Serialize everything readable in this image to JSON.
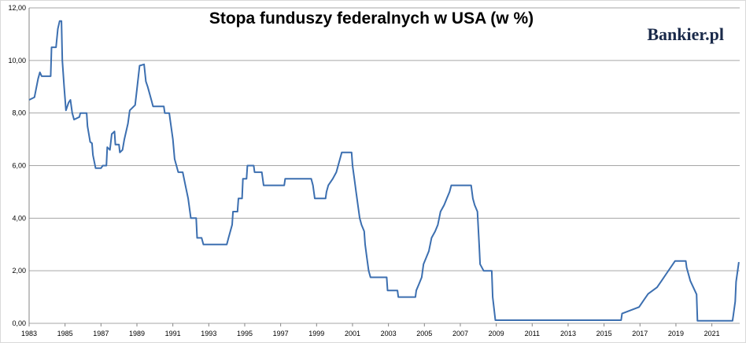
{
  "chart_data": {
    "type": "line",
    "title": "Stopa funduszy federalnych w USA (w %)",
    "brand": "Bankier.pl",
    "x": [
      1983.0,
      1983.3,
      1983.5,
      1983.6,
      1983.7,
      1984.2,
      1984.25,
      1984.5,
      1984.6,
      1984.7,
      1984.8,
      1984.85,
      1984.95,
      1985.05,
      1985.2,
      1985.3,
      1985.4,
      1985.5,
      1985.8,
      1985.85,
      1986.2,
      1986.25,
      1986.4,
      1986.5,
      1986.55,
      1986.7,
      1987.0,
      1987.1,
      1987.3,
      1987.35,
      1987.5,
      1987.6,
      1987.75,
      1987.8,
      1988.0,
      1988.05,
      1988.2,
      1988.3,
      1988.5,
      1988.6,
      1988.9,
      1989.0,
      1989.15,
      1989.4,
      1989.5,
      1989.6,
      1989.8,
      1989.9,
      1990.5,
      1990.55,
      1990.8,
      1990.85,
      1991.0,
      1991.1,
      1991.3,
      1991.55,
      1991.7,
      1991.85,
      1992.0,
      1992.3,
      1992.35,
      1992.6,
      1992.7,
      1994.0,
      1994.1,
      1994.3,
      1994.35,
      1994.6,
      1994.65,
      1994.85,
      1994.9,
      1995.1,
      1995.15,
      1995.5,
      1995.55,
      1995.95,
      1996.05,
      1997.2,
      1997.25,
      1998.7,
      1998.8,
      1998.9,
      1999.5,
      1999.55,
      1999.65,
      1999.9,
      2000.1,
      2000.2,
      2000.4,
      2000.95,
      2001.0,
      2001.1,
      2001.2,
      2001.3,
      2001.4,
      2001.5,
      2001.65,
      2001.7,
      2001.8,
      2001.9,
      2002.0,
      2002.9,
      2002.95,
      2003.5,
      2003.55,
      2004.5,
      2004.55,
      2004.7,
      2004.85,
      2004.95,
      2005.1,
      2005.25,
      2005.4,
      2005.6,
      2005.75,
      2005.9,
      2006.1,
      2006.25,
      2006.4,
      2006.5,
      2007.6,
      2007.7,
      2007.8,
      2007.95,
      2008.05,
      2008.1,
      2008.3,
      2008.75,
      2008.8,
      2008.95,
      2015.95,
      2016.0,
      2016.95,
      2017.2,
      2017.45,
      2017.95,
      2018.2,
      2018.45,
      2018.7,
      2018.95,
      2019.55,
      2019.6,
      2019.7,
      2019.8,
      2020.15,
      2020.2,
      2022.15,
      2022.2,
      2022.3,
      2022.35,
      2022.5
    ],
    "series": [
      {
        "color": "#3c6fb0",
        "values": [
          8.5,
          8.6,
          9.3,
          9.55,
          9.4,
          9.4,
          10.5,
          10.5,
          11.2,
          11.5,
          11.5,
          10.0,
          9.0,
          8.1,
          8.4,
          8.5,
          8.0,
          7.75,
          7.85,
          8.0,
          8.0,
          7.5,
          6.9,
          6.85,
          6.4,
          5.9,
          5.9,
          6.0,
          6.0,
          6.7,
          6.6,
          7.2,
          7.3,
          6.8,
          6.8,
          6.5,
          6.6,
          7.0,
          7.6,
          8.1,
          8.3,
          8.9,
          9.8,
          9.85,
          9.2,
          9.0,
          8.5,
          8.25,
          8.25,
          8.0,
          8.0,
          7.75,
          7.0,
          6.25,
          5.75,
          5.75,
          5.25,
          4.75,
          4.0,
          4.0,
          3.25,
          3.25,
          3.0,
          3.0,
          3.25,
          3.75,
          4.25,
          4.25,
          4.75,
          4.75,
          5.5,
          5.5,
          6.0,
          6.0,
          5.75,
          5.75,
          5.25,
          5.25,
          5.5,
          5.5,
          5.25,
          4.75,
          4.75,
          5.0,
          5.25,
          5.5,
          5.75,
          6.0,
          6.5,
          6.5,
          6.0,
          5.5,
          5.0,
          4.5,
          4.0,
          3.75,
          3.5,
          3.0,
          2.5,
          2.0,
          1.75,
          1.75,
          1.25,
          1.25,
          1.0,
          1.0,
          1.25,
          1.5,
          1.75,
          2.25,
          2.5,
          2.75,
          3.25,
          3.5,
          3.75,
          4.25,
          4.5,
          4.75,
          5.0,
          5.25,
          5.25,
          4.75,
          4.5,
          4.25,
          3.0,
          2.25,
          2.0,
          2.0,
          1.0,
          0.12,
          0.12,
          0.37,
          0.62,
          0.87,
          1.12,
          1.37,
          1.62,
          1.87,
          2.12,
          2.37,
          2.37,
          2.12,
          1.87,
          1.62,
          1.1,
          0.1,
          0.1,
          0.33,
          0.83,
          1.58,
          2.33
        ]
      }
    ],
    "xlim": [
      1983,
      2022.55
    ],
    "xticks": [
      1983,
      1985,
      1987,
      1989,
      1991,
      1993,
      1995,
      1997,
      1999,
      2001,
      2003,
      2005,
      2007,
      2009,
      2011,
      2013,
      2015,
      2017,
      2019,
      2021
    ],
    "ylim": [
      0,
      12
    ],
    "yticks": [
      {
        "value": 0,
        "label": "0,00"
      },
      {
        "value": 2,
        "label": "2,00"
      },
      {
        "value": 4,
        "label": "4,00"
      },
      {
        "value": 6,
        "label": "6,00"
      },
      {
        "value": 8,
        "label": "8,00"
      },
      {
        "value": 10,
        "label": "10,00"
      },
      {
        "value": 12,
        "label": "12,00"
      }
    ],
    "grid": true
  }
}
